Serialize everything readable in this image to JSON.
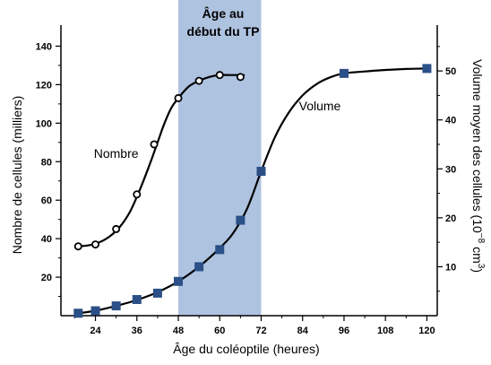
{
  "chart_data": {
    "type": "line",
    "xlabel": "Âge du coléoptile (heures)",
    "ylabel_left": "Nombre de cellules (milliers)",
    "ylabel_right_main": "Volume moyen des cellules (10",
    "ylabel_right_sup": "−8",
    "ylabel_right_end": " cm",
    "ylabel_right_sup2": "3",
    "ylabel_right_close": ")",
    "xlim": [
      14,
      123
    ],
    "ylim_left": [
      0,
      150
    ],
    "ylim_right": [
      0,
      59
    ],
    "x_ticks": [
      24,
      36,
      48,
      60,
      72,
      84,
      96,
      108,
      120
    ],
    "y_ticks_left": [
      20,
      40,
      60,
      80,
      100,
      120,
      140
    ],
    "y_ticks_right": [
      10,
      20,
      30,
      40,
      50
    ],
    "highlight": {
      "x_start": 48,
      "x_end": 72,
      "label_line1": "Âge au",
      "label_line2": "début du TP",
      "color": "#aec3e0"
    },
    "series": [
      {
        "name": "Nombre",
        "axis": "left",
        "marker": "open-circle",
        "x": [
          19,
          24,
          30,
          36,
          41,
          48,
          54,
          60,
          66
        ],
        "y": [
          36,
          37,
          45,
          63,
          89,
          113,
          122,
          125,
          124
        ],
        "color": "#000000",
        "curve_x": [
          19,
          22,
          25,
          28,
          31,
          34,
          37,
          40,
          42,
          44,
          46,
          48,
          51,
          54,
          57,
          60,
          63,
          67
        ],
        "curve_y": [
          36,
          36.5,
          38,
          41,
          46,
          54,
          66,
          80,
          90,
          100,
          108,
          113,
          119,
          122,
          124,
          125,
          125,
          125
        ],
        "label_x": 30,
        "label_y": 82
      },
      {
        "name": "Volume",
        "axis": "right",
        "marker": "filled-square",
        "marker_color": "#2b4f87",
        "x": [
          19,
          24,
          30,
          36,
          42,
          48,
          54,
          60,
          66,
          72,
          96,
          120
        ],
        "y": [
          0.5,
          1,
          2,
          3.3,
          4.6,
          7,
          10,
          13.5,
          19.5,
          29.5,
          49.5,
          50.5
        ],
        "color": "#000000",
        "curve_x": [
          19,
          24,
          30,
          36,
          42,
          48,
          54,
          60,
          64,
          68,
          72,
          76,
          80,
          84,
          88,
          92,
          96,
          102,
          108,
          114,
          120
        ],
        "curve_y": [
          0.5,
          1,
          2,
          3.2,
          4.8,
          7,
          10,
          13.8,
          17,
          22,
          29.5,
          36.5,
          41.5,
          45,
          47.3,
          48.7,
          49.5,
          49.9,
          50.2,
          50.4,
          50.5
        ],
        "label_x": 89,
        "label_y": 42
      }
    ]
  }
}
